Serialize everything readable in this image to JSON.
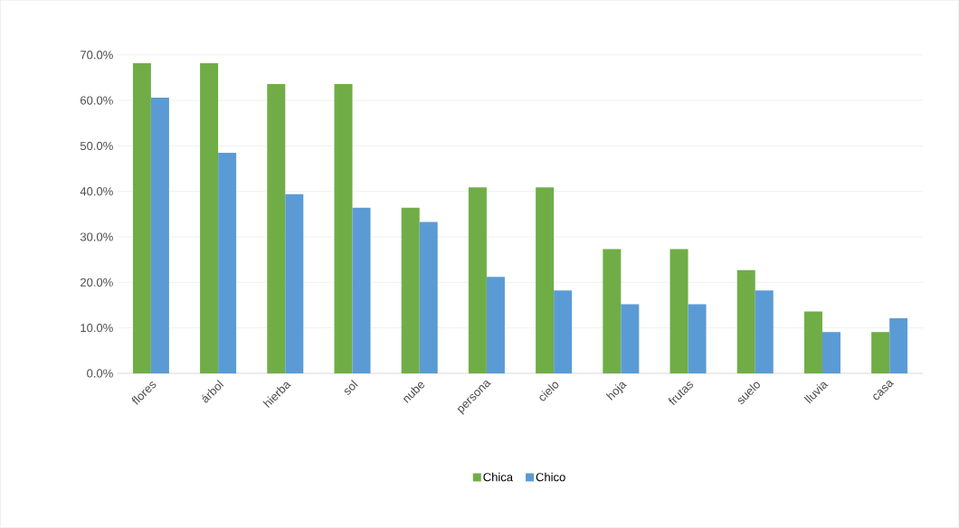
{
  "chart_data": {
    "type": "bar",
    "categories": [
      "flores",
      "árbol",
      "hierba",
      "sol",
      "nube",
      "persona",
      "cielo",
      "hoja",
      "frutas",
      "suelo",
      "lluvia",
      "casa"
    ],
    "series": [
      {
        "name": "Chica",
        "color": "#70ad47",
        "values": [
          68.2,
          68.2,
          63.6,
          63.6,
          36.4,
          40.9,
          40.9,
          27.3,
          27.3,
          22.7,
          13.6,
          9.1
        ]
      },
      {
        "name": "Chico",
        "color": "#5b9bd5",
        "values": [
          60.6,
          48.5,
          39.4,
          36.4,
          33.3,
          21.2,
          18.2,
          15.2,
          15.2,
          18.2,
          9.1,
          12.1
        ]
      }
    ],
    "ylim": [
      0,
      70
    ],
    "yticks": [
      {
        "value": 0,
        "label": "0.0%"
      },
      {
        "value": 10,
        "label": "10.0%"
      },
      {
        "value": 20,
        "label": "20.0%"
      },
      {
        "value": 30,
        "label": "30.0%"
      },
      {
        "value": 40,
        "label": "40.0%"
      },
      {
        "value": 50,
        "label": "50.0%"
      },
      {
        "value": 60,
        "label": "60.0%"
      },
      {
        "value": 70,
        "label": "70.0%"
      }
    ],
    "grid": "y",
    "legend": "bottom"
  }
}
